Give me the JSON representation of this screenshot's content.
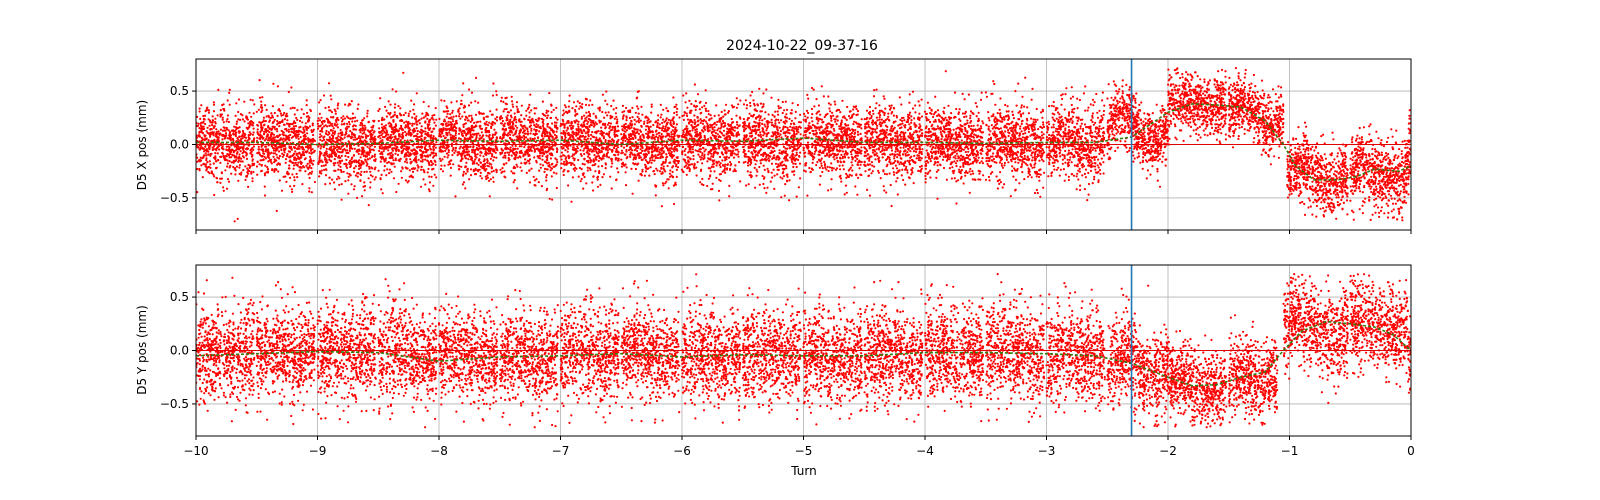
{
  "chart_data": [
    {
      "type": "scatter",
      "id": "x",
      "title": "2024-10-22_09-37-16",
      "xlabel": "",
      "ylabel": "D5 X pos (mm)",
      "xlim": [
        -10,
        0
      ],
      "ylim": [
        -0.8,
        0.8
      ],
      "yticks": [
        0.5,
        0.0,
        -0.5
      ],
      "ytick_labels": [
        "0.5",
        "0.0",
        "−0.5"
      ],
      "xticks": [
        -10,
        -9,
        -8,
        -7,
        -6,
        -5,
        -4,
        -3,
        -2,
        -1,
        0
      ],
      "xtick_labels": [],
      "grid": true,
      "marker_line_x": -2.3,
      "zero_line_y": 0.0,
      "colors": {
        "points": "#ff0000",
        "trend": "#2e7d0f",
        "marker": "#1f77b4",
        "zero": "#e00000"
      },
      "segments": [
        {
          "x": [
            -10.0,
            -9.52
          ],
          "mean": 0.02,
          "noise": 0.17,
          "trend_amp": 0.03
        },
        {
          "x": [
            -9.5,
            -9.02
          ],
          "mean": 0.01,
          "noise": 0.17,
          "trend_amp": 0.03
        },
        {
          "x": [
            -9.0,
            -8.52
          ],
          "mean": 0.0,
          "noise": 0.17,
          "trend_amp": 0.03
        },
        {
          "x": [
            -8.5,
            -8.02
          ],
          "mean": 0.02,
          "noise": 0.17,
          "trend_amp": 0.03
        },
        {
          "x": [
            -8.0,
            -7.52
          ],
          "mean": 0.03,
          "noise": 0.17,
          "trend_amp": 0.03
        },
        {
          "x": [
            -7.5,
            -7.02
          ],
          "mean": 0.03,
          "noise": 0.17,
          "trend_amp": 0.03
        },
        {
          "x": [
            -7.0,
            -6.52
          ],
          "mean": 0.02,
          "noise": 0.17,
          "trend_amp": 0.03
        },
        {
          "x": [
            -6.5,
            -6.02
          ],
          "mean": 0.01,
          "noise": 0.17,
          "trend_amp": 0.03
        },
        {
          "x": [
            -6.0,
            -5.52
          ],
          "mean": 0.03,
          "noise": 0.17,
          "trend_amp": 0.03
        },
        {
          "x": [
            -5.5,
            -5.02
          ],
          "mean": 0.03,
          "noise": 0.17,
          "trend_amp": 0.03
        },
        {
          "x": [
            -5.0,
            -4.52
          ],
          "mean": 0.04,
          "noise": 0.17,
          "trend_amp": 0.03
        },
        {
          "x": [
            -4.5,
            -4.02
          ],
          "mean": 0.02,
          "noise": 0.17,
          "trend_amp": 0.03
        },
        {
          "x": [
            -4.0,
            -3.52
          ],
          "mean": 0.02,
          "noise": 0.17,
          "trend_amp": 0.03
        },
        {
          "x": [
            -3.5,
            -3.02
          ],
          "mean": 0.01,
          "noise": 0.17,
          "trend_amp": 0.03
        },
        {
          "x": [
            -3.0,
            -2.52
          ],
          "mean": 0.02,
          "noise": 0.17,
          "trend_amp": 0.03
        },
        {
          "x": [
            -2.5,
            -2.0
          ],
          "mean": 0.15,
          "noise": 0.14,
          "trend_amp": 0.15
        },
        {
          "x": [
            -2.0,
            -1.52
          ],
          "mean": 0.38,
          "noise": 0.14,
          "trend_amp": 0.03
        },
        {
          "x": [
            -1.5,
            -1.05
          ],
          "mean": 0.28,
          "noise": 0.14,
          "trend_amp": 0.12
        },
        {
          "x": [
            -1.02,
            -0.52
          ],
          "mean": -0.28,
          "noise": 0.15,
          "trend_amp": 0.08
        },
        {
          "x": [
            -0.5,
            -0.02
          ],
          "mean": -0.27,
          "noise": 0.17,
          "trend_amp": 0.05
        },
        {
          "x": [
            -0.02,
            0.0
          ],
          "mean": 0.0,
          "noise": 0.2,
          "trend_amp": 0.0
        }
      ],
      "trend": {
        "x": [
          -10,
          -9.5,
          -9,
          -8.5,
          -8,
          -7.5,
          -7,
          -6.5,
          -6,
          -5.5,
          -5,
          -4.5,
          -4,
          -3.5,
          -3,
          -2.6,
          -2.3,
          -2.0,
          -1.8,
          -1.6,
          -1.4,
          -1.2,
          -1.05,
          -0.95,
          -0.8,
          -0.6,
          -0.45,
          -0.3,
          -0.1,
          0.0
        ],
        "y": [
          0.02,
          0.02,
          0.0,
          0.01,
          0.04,
          0.03,
          0.04,
          0.0,
          0.04,
          0.03,
          0.06,
          0.02,
          0.02,
          0.01,
          0.02,
          0.02,
          0.07,
          0.3,
          0.38,
          0.37,
          0.35,
          0.22,
          0.0,
          -0.2,
          -0.33,
          -0.33,
          -0.3,
          -0.23,
          -0.25,
          -0.2
        ]
      }
    },
    {
      "type": "scatter",
      "id": "y",
      "title": "",
      "xlabel": "Turn",
      "ylabel": "D5 Y pos (mm)",
      "xlim": [
        -10,
        0
      ],
      "ylim": [
        -0.8,
        0.8
      ],
      "yticks": [
        0.5,
        0.0,
        -0.5
      ],
      "ytick_labels": [
        "0.5",
        "0.0",
        "−0.5"
      ],
      "xticks": [
        -10,
        -9,
        -8,
        -7,
        -6,
        -5,
        -4,
        -3,
        -2,
        -1,
        0
      ],
      "xtick_labels": [
        "−10",
        "−9",
        "−8",
        "−7",
        "−6",
        "−5",
        "−4",
        "−3",
        "−2",
        "−1",
        "0"
      ],
      "grid": true,
      "marker_line_x": -2.3,
      "zero_line_y": 0.0,
      "colors": {
        "points": "#ff0000",
        "trend": "#2e7d0f",
        "marker": "#1f77b4",
        "zero": "#e00000"
      },
      "segments": [
        {
          "x": [
            -10.0,
            -9.52
          ],
          "mean": -0.05,
          "noise": 0.22,
          "trend_amp": 0.02
        },
        {
          "x": [
            -9.5,
            -9.02
          ],
          "mean": -0.02,
          "noise": 0.22,
          "trend_amp": 0.02
        },
        {
          "x": [
            -9.0,
            -8.52
          ],
          "mean": -0.01,
          "noise": 0.22,
          "trend_amp": 0.02
        },
        {
          "x": [
            -8.5,
            -8.02
          ],
          "mean": -0.05,
          "noise": 0.22,
          "trend_amp": 0.05
        },
        {
          "x": [
            -8.0,
            -7.52
          ],
          "mean": -0.05,
          "noise": 0.22,
          "trend_amp": 0.03
        },
        {
          "x": [
            -7.5,
            -7.02
          ],
          "mean": -0.07,
          "noise": 0.22,
          "trend_amp": 0.03
        },
        {
          "x": [
            -7.0,
            -6.52
          ],
          "mean": -0.03,
          "noise": 0.22,
          "trend_amp": 0.03
        },
        {
          "x": [
            -6.5,
            -6.02
          ],
          "mean": -0.03,
          "noise": 0.22,
          "trend_amp": 0.03
        },
        {
          "x": [
            -6.0,
            -5.52
          ],
          "mean": -0.06,
          "noise": 0.22,
          "trend_amp": 0.03
        },
        {
          "x": [
            -5.5,
            -5.02
          ],
          "mean": -0.04,
          "noise": 0.22,
          "trend_amp": 0.03
        },
        {
          "x": [
            -5.0,
            -4.52
          ],
          "mean": -0.05,
          "noise": 0.22,
          "trend_amp": 0.03
        },
        {
          "x": [
            -4.5,
            -4.02
          ],
          "mean": -0.05,
          "noise": 0.22,
          "trend_amp": 0.03
        },
        {
          "x": [
            -4.0,
            -3.52
          ],
          "mean": -0.02,
          "noise": 0.22,
          "trend_amp": 0.03
        },
        {
          "x": [
            -3.5,
            -3.02
          ],
          "mean": -0.02,
          "noise": 0.22,
          "trend_amp": 0.03
        },
        {
          "x": [
            -3.0,
            -2.52
          ],
          "mean": -0.04,
          "noise": 0.22,
          "trend_amp": 0.03
        },
        {
          "x": [
            -2.5,
            -2.0
          ],
          "mean": -0.15,
          "noise": 0.2,
          "trend_amp": 0.1
        },
        {
          "x": [
            -2.0,
            -1.52
          ],
          "mean": -0.32,
          "noise": 0.17,
          "trend_amp": 0.03
        },
        {
          "x": [
            -1.5,
            -1.1
          ],
          "mean": -0.25,
          "noise": 0.18,
          "trend_amp": 0.05
        },
        {
          "x": [
            -1.05,
            -0.52
          ],
          "mean": 0.2,
          "noise": 0.2,
          "trend_amp": 0.08
        },
        {
          "x": [
            -0.5,
            -0.02
          ],
          "mean": 0.22,
          "noise": 0.2,
          "trend_amp": 0.05
        },
        {
          "x": [
            -0.02,
            0.0
          ],
          "mean": -0.05,
          "noise": 0.2,
          "trend_amp": 0.0
        }
      ],
      "trend": {
        "x": [
          -10,
          -9.5,
          -9,
          -8.5,
          -8,
          -7.5,
          -7,
          -6.5,
          -6,
          -5.5,
          -5,
          -4.5,
          -4,
          -3.5,
          -3,
          -2.6,
          -2.3,
          -2.0,
          -1.8,
          -1.6,
          -1.4,
          -1.2,
          -1.05,
          -0.9,
          -0.7,
          -0.5,
          -0.3,
          -0.15,
          0.0
        ],
        "y": [
          -0.05,
          -0.03,
          -0.01,
          -0.02,
          -0.1,
          -0.06,
          -0.05,
          -0.03,
          -0.06,
          -0.04,
          -0.05,
          -0.05,
          -0.02,
          -0.02,
          -0.03,
          -0.05,
          -0.12,
          -0.25,
          -0.33,
          -0.32,
          -0.25,
          -0.2,
          0.0,
          0.18,
          0.27,
          0.25,
          0.22,
          0.15,
          0.0
        ]
      }
    }
  ]
}
